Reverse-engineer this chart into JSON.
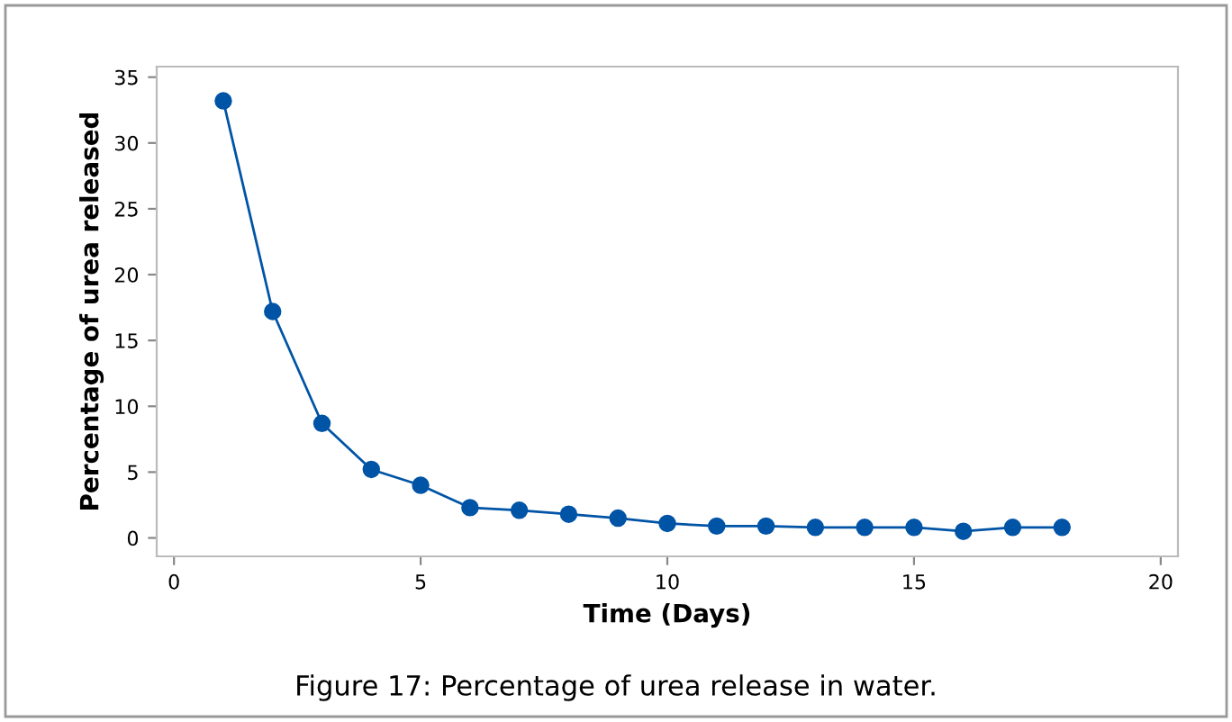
{
  "chart_data": {
    "type": "line",
    "xlabel": "Time (Days)",
    "ylabel": "Percentage of urea released",
    "x": [
      1,
      2,
      3,
      4,
      5,
      6,
      7,
      8,
      9,
      10,
      11,
      12,
      13,
      14,
      15,
      16,
      17,
      18
    ],
    "series": [
      {
        "color": "#0054a6",
        "values": [
          33.2,
          17.2,
          8.7,
          5.2,
          4.0,
          2.3,
          2.1,
          1.8,
          1.5,
          1.1,
          0.9,
          0.9,
          0.8,
          0.8,
          0.8,
          0.5,
          0.8,
          0.8
        ]
      }
    ],
    "xlim": [
      -0.35,
      20.35
    ],
    "ylim": [
      -1.4,
      35.8
    ],
    "xticks": [
      0,
      5,
      10,
      15,
      20
    ],
    "yticks": [
      0,
      5,
      10,
      15,
      20,
      25,
      30,
      35
    ],
    "marker": "circle",
    "line_style": "solid",
    "grid": false,
    "legend": false,
    "annotations": [
      "Figure 17: Percentage of urea release in water."
    ]
  }
}
